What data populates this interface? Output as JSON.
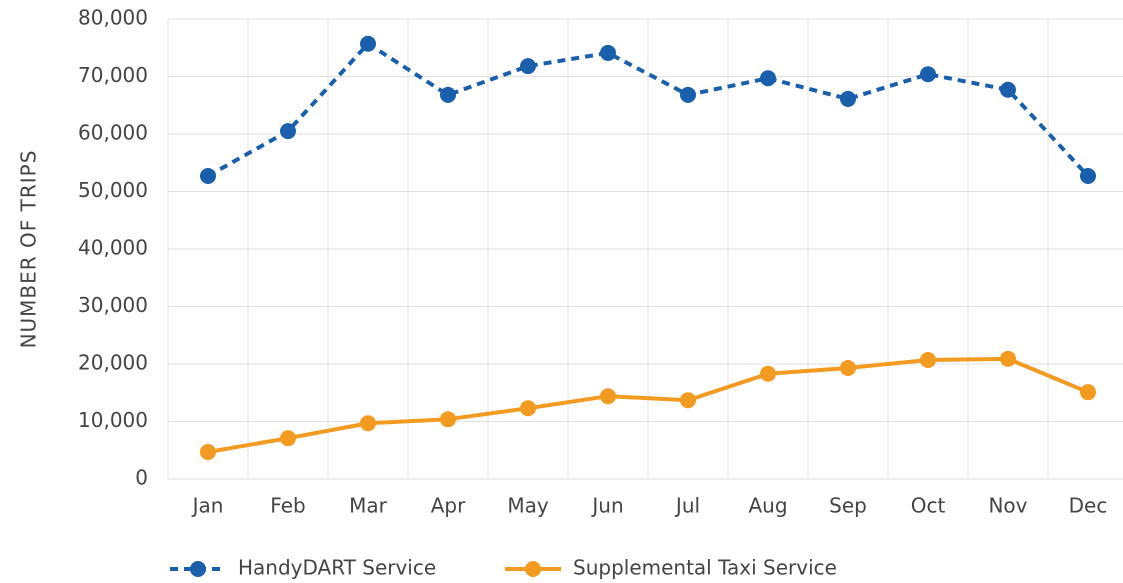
{
  "chart_data": {
    "type": "line",
    "ylabel": "NUMBER OF TRIPS",
    "categories": [
      "Jan",
      "Feb",
      "Mar",
      "Apr",
      "May",
      "Jun",
      "Jul",
      "Aug",
      "Sep",
      "Oct",
      "Nov",
      "Dec"
    ],
    "series": [
      {
        "name": "HandyDART Service",
        "color": "#1a5fac",
        "line_style": "dotted",
        "values": [
          52700,
          60500,
          75700,
          66800,
          71800,
          74100,
          66800,
          69700,
          66100,
          70400,
          67700,
          52700
        ]
      },
      {
        "name": "Supplemental Taxi Service",
        "color": "#f39a21",
        "line_style": "solid",
        "values": [
          4700,
          7100,
          9700,
          10400,
          12300,
          14400,
          13700,
          18300,
          19300,
          20700,
          20900,
          15100
        ]
      }
    ],
    "ylim": [
      0,
      80000
    ],
    "yticks": [
      0,
      {
        "value": 10000,
        "label": "10,000"
      },
      {
        "value": 20000,
        "label": "20,000"
      },
      {
        "value": 30000,
        "label": "30,000"
      },
      {
        "value": 40000,
        "label": "40,000"
      },
      {
        "value": 50000,
        "label": "50,000"
      },
      {
        "value": 60000,
        "label": "60,000"
      },
      {
        "value": 70000,
        "label": "70,000"
      },
      {
        "value": 80000,
        "label": "80,000"
      }
    ],
    "grid": true,
    "legend": "bottom"
  }
}
